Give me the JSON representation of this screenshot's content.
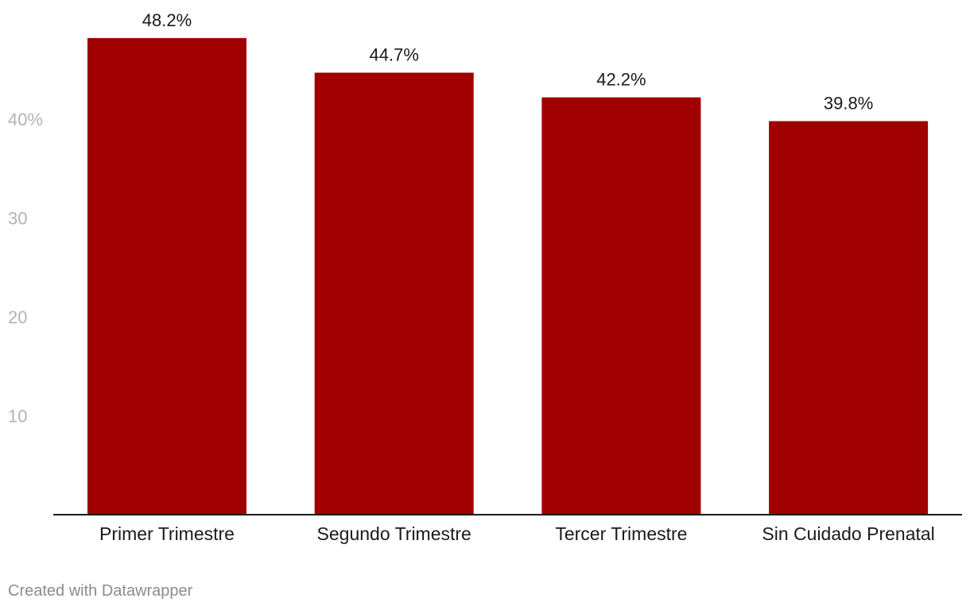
{
  "chart_data": {
    "type": "bar",
    "categories": [
      "Primer Trimestre",
      "Segundo Trimestre",
      "Tercer Trimestre",
      "Sin Cuidado Prenatal"
    ],
    "values": [
      48.2,
      44.7,
      42.2,
      39.8
    ],
    "data_labels": [
      "48.2%",
      "44.7%",
      "42.2%",
      "39.8%"
    ],
    "y_ticks": [
      {
        "value": 10,
        "label": "10"
      },
      {
        "value": 20,
        "label": "20"
      },
      {
        "value": 30,
        "label": "30"
      },
      {
        "value": 40,
        "label": "40%"
      }
    ],
    "ylim": [
      0,
      50
    ],
    "grid": false,
    "bar_color": "#a00000"
  },
  "footer": {
    "credit": "Created with Datawrapper"
  }
}
